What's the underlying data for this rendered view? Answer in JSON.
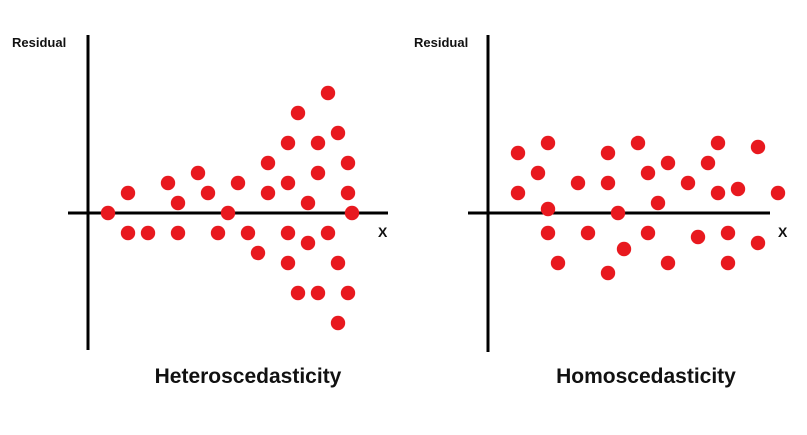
{
  "colors": {
    "point": "#e8191f",
    "axis": "#000000",
    "text": "#111111"
  },
  "chart_data": [
    {
      "type": "scatter",
      "title": "Heteroscedasticity",
      "xlabel": "X",
      "ylabel": "Residual",
      "xlim": [
        0,
        15
      ],
      "ylim": [
        -6.5,
        8.5
      ],
      "grid": false,
      "legend": "none",
      "series": [
        {
          "points": [
            [
              1,
              0
            ],
            [
              2,
              1
            ],
            [
              2,
              -1
            ],
            [
              3,
              -1
            ],
            [
              4,
              1.5
            ],
            [
              4.5,
              0.5
            ],
            [
              4.5,
              -1
            ],
            [
              5.5,
              2
            ],
            [
              6,
              1
            ],
            [
              6.5,
              -1
            ],
            [
              7,
              0
            ],
            [
              7.5,
              1.5
            ],
            [
              8,
              -1
            ],
            [
              8.5,
              -2
            ],
            [
              9,
              2.5
            ],
            [
              9,
              1
            ],
            [
              10,
              3.5
            ],
            [
              10,
              1.5
            ],
            [
              10,
              -1
            ],
            [
              10,
              -2.5
            ],
            [
              10.5,
              5
            ],
            [
              10.5,
              -4
            ],
            [
              11,
              0.5
            ],
            [
              11,
              -1.5
            ],
            [
              11.5,
              3.5
            ],
            [
              11.5,
              2
            ],
            [
              11.5,
              -4
            ],
            [
              12,
              6
            ],
            [
              12,
              -1
            ],
            [
              12.5,
              4
            ],
            [
              12.5,
              -2.5
            ],
            [
              12.5,
              -5.5
            ],
            [
              13,
              2.5
            ],
            [
              13,
              1
            ],
            [
              13,
              -4
            ],
            [
              13.2,
              0
            ]
          ]
        }
      ]
    },
    {
      "type": "scatter",
      "title": "Homoscedasticity",
      "xlabel": "X",
      "ylabel": "Residual",
      "xlim": [
        0,
        15
      ],
      "ylim": [
        -6.5,
        8.5
      ],
      "grid": false,
      "legend": "none",
      "series": [
        {
          "points": [
            [
              1.5,
              3
            ],
            [
              1.5,
              1
            ],
            [
              2.5,
              2
            ],
            [
              3,
              3.5
            ],
            [
              3,
              0.2
            ],
            [
              3,
              -1
            ],
            [
              3.5,
              -2.5
            ],
            [
              4.5,
              1.5
            ],
            [
              5,
              -1
            ],
            [
              6,
              -3
            ],
            [
              6,
              3
            ],
            [
              6,
              1.5
            ],
            [
              6.5,
              0
            ],
            [
              6.8,
              -1.8
            ],
            [
              7.5,
              3.5
            ],
            [
              8,
              2
            ],
            [
              8,
              -1
            ],
            [
              8.5,
              0.5
            ],
            [
              9,
              2.5
            ],
            [
              9,
              -2.5
            ],
            [
              10,
              1.5
            ],
            [
              10.5,
              -1.2
            ],
            [
              11,
              2.5
            ],
            [
              11.5,
              3.5
            ],
            [
              11.5,
              1
            ],
            [
              12,
              -1
            ],
            [
              12,
              -2.5
            ],
            [
              12.5,
              1.2
            ],
            [
              13.5,
              3.3
            ],
            [
              13.5,
              -1.5
            ],
            [
              14.5,
              1
            ]
          ]
        }
      ]
    }
  ]
}
